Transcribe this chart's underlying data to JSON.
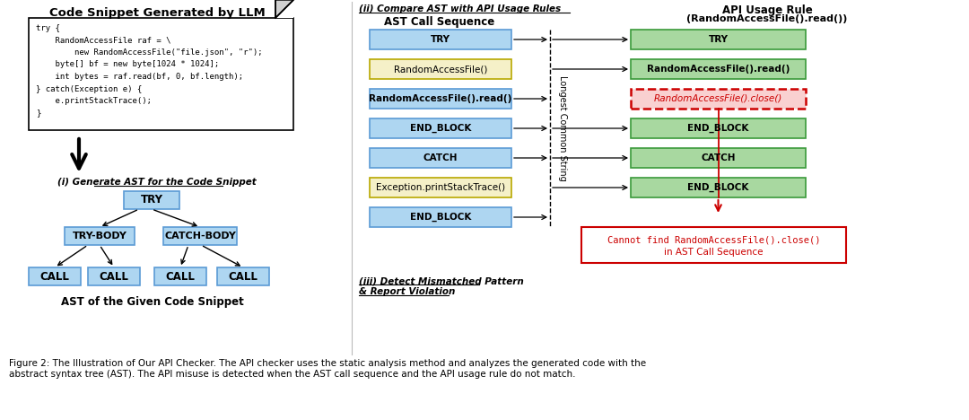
{
  "title_left": "Code Snippet Generated by LLM",
  "code_lines": [
    "try {",
    "    RandomAccessFile raf = \\",
    "        new RandomAccessFile(\"file.json\", \"r\");",
    "    byte[] bf = new byte[1024 * 1024];",
    "    int bytes = raf.read(bf, 0, bf.length);",
    "} catch(Exception e) {",
    "    e.printStackTrace();",
    "}"
  ],
  "ast_label": "(i) Generate AST for the Code Snippet",
  "ast_bottom_label": "AST of the Given Code Snippet",
  "section2_label": "(ii) Compare AST with API Usage Rules",
  "section3_label_1": "(iii) Detect Mismatched Pattern",
  "section3_label_2": "& Report Violation",
  "ast_col_label": "AST Call Sequence",
  "api_col_label_1": "API Usage Rule",
  "api_col_label_2": "(RandomAccessFile().read())",
  "lcs_label": "Longest Common String",
  "ast_seq": [
    "TRY",
    "RandomAccessFile()",
    "RandomAccessFile().read()",
    "END_BLOCK",
    "CATCH",
    "Exception.printStackTrace()",
    "END_BLOCK"
  ],
  "ast_seq_colors": [
    "#aed6f1",
    "#f5f0c8",
    "#aed6f1",
    "#aed6f1",
    "#aed6f1",
    "#f5f0c8",
    "#aed6f1"
  ],
  "ast_seq_bold": [
    true,
    false,
    true,
    true,
    true,
    false,
    true
  ],
  "api_seq": [
    "TRY",
    "RandomAccessFile().read()",
    "RandomAccessFile().close()",
    "END_BLOCK",
    "CATCH",
    "END_BLOCK"
  ],
  "api_seq_colors": [
    "#a8d8a0",
    "#a8d8a0",
    "#f9d0d0",
    "#a8d8a0",
    "#a8d8a0",
    "#a8d8a0"
  ],
  "api_seq_dashed": [
    false,
    false,
    true,
    false,
    false,
    false
  ],
  "api_seq_italic": [
    false,
    false,
    true,
    false,
    false,
    false
  ],
  "api_seq_red_text": [
    false,
    false,
    true,
    false,
    false,
    false
  ],
  "lcs_matches_ast": [
    0,
    2,
    3,
    4,
    6
  ],
  "lcs_matches_api": [
    0,
    1,
    3,
    4,
    5
  ],
  "error_box_text_1": "Cannot find RandomAccessFile().close()",
  "error_box_text_2": "in AST Call Sequence",
  "figure_caption_1": "Figure 2: The Illustration of Our API Checker. The API checker uses the static analysis method and analyzes the generated code with the",
  "figure_caption_2": "abstract syntax tree (AST). The API misuse is detected when the AST call sequence and the API usage rule do not match.",
  "bg_color": "#ffffff",
  "red_color": "#cc0000",
  "blue_edge": "#5b9bd5",
  "green_edge": "#3a9a3a",
  "yellow_edge": "#b8a800"
}
